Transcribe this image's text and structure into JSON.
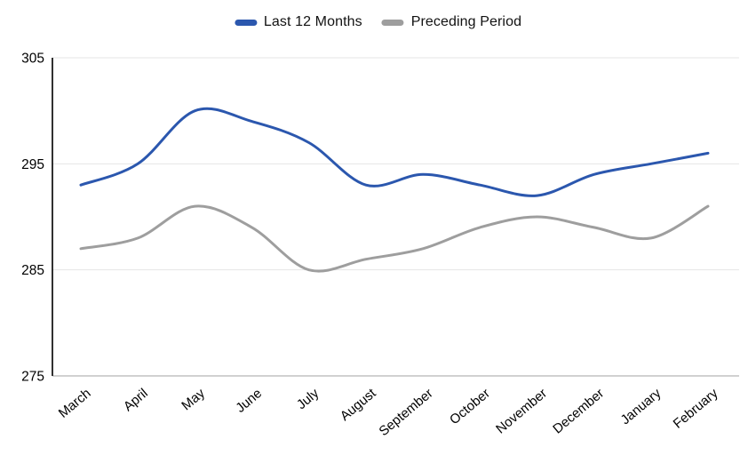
{
  "legend": {
    "items": [
      {
        "label": "Last 12 Months",
        "color": "#2b57ae"
      },
      {
        "label": "Preceding Period",
        "color": "#9e9e9e"
      }
    ]
  },
  "chart_data": {
    "type": "line",
    "smooth": true,
    "title": "",
    "xlabel": "",
    "ylabel": "",
    "categories": [
      "March",
      "April",
      "May",
      "June",
      "July",
      "August",
      "September",
      "October",
      "November",
      "December",
      "January",
      "February"
    ],
    "series": [
      {
        "name": "Last 12 Months",
        "color": "#2b57ae",
        "values": [
          293,
          295,
          300,
          299,
          297,
          293,
          294,
          293,
          292,
          294,
          295,
          296
        ]
      },
      {
        "name": "Preceding Period",
        "color": "#9e9e9e",
        "values": [
          287,
          288,
          291,
          289,
          285,
          286,
          287,
          289,
          290,
          289,
          288,
          291
        ]
      }
    ],
    "y_ticks": [
      275,
      285,
      295,
      305
    ],
    "ylim": [
      275,
      305
    ],
    "grid": true,
    "legend_position": "top",
    "colors": {
      "axis_line": "#1a1a1a",
      "gridline": "#e4e4e4",
      "baseline": "#c2c2c2",
      "tick_label": "#000000"
    }
  }
}
